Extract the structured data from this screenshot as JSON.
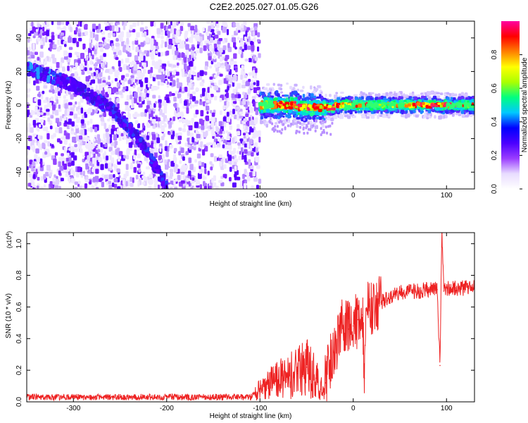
{
  "title": "C2E2.2025.027.01.05.G26",
  "chart_data": [
    {
      "type": "heatmap",
      "xlabel": "Height of straight line (km)",
      "ylabel": "Frequency (Hz)",
      "xlim": [
        -350,
        130
      ],
      "ylim": [
        -50,
        50
      ],
      "xticks": [
        -300,
        -200,
        -100,
        0,
        100
      ],
      "yticks": [
        -40,
        -20,
        0,
        20,
        40
      ],
      "colorbar": {
        "label": "Normalized spectral amplitude",
        "range": [
          0,
          1
        ],
        "ticks": [
          "0.0",
          "0.2",
          "0.4",
          "0.6",
          "0.8"
        ],
        "colormap": [
          "#ffffff",
          "#e8dcff",
          "#9a3dff",
          "#4b00ff",
          "#0000ff",
          "#00c8ff",
          "#00ff80",
          "#aaff00",
          "#ffff00",
          "#ff8000",
          "#ff0000",
          "#ff00a0"
        ]
      },
      "features": {
        "noise_region_x": [
          -350,
          -100
        ],
        "descending_track": [
          [
            -350,
            22
          ],
          [
            -300,
            12
          ],
          [
            -260,
            -2
          ],
          [
            -230,
            -20
          ],
          [
            -200,
            -48
          ]
        ],
        "signal_band_x": [
          -100,
          130
        ],
        "signal_band_center_hz": 0
      }
    },
    {
      "type": "line",
      "xlabel": "Height of straight line (km)",
      "ylabel": "SNR (10 * v/v)",
      "y_exponent_label": "(x10",
      "y_exponent": "4",
      "xlim": [
        -350,
        130
      ],
      "ylim": [
        0,
        1.07
      ],
      "xticks": [
        -300,
        -200,
        -100,
        0,
        100
      ],
      "yticks": [
        "0.0",
        "0.2",
        "0.4",
        "0.6",
        "0.8",
        "1.0"
      ],
      "series": [
        {
          "name": "SNR",
          "color": "#ee2222",
          "x": [
            -350,
            -300,
            -250,
            -200,
            -150,
            -110,
            -100,
            -90,
            -80,
            -70,
            -60,
            -50,
            -40,
            -35,
            -30,
            -25,
            -20,
            -15,
            -12,
            -10,
            -8,
            -5,
            0,
            5,
            10,
            12,
            14,
            20,
            30,
            40,
            50,
            60,
            70,
            80,
            90,
            93,
            95,
            97,
            100,
            110,
            120,
            130
          ],
          "values": [
            0.03,
            0.03,
            0.03,
            0.03,
            0.03,
            0.03,
            0.08,
            0.12,
            0.14,
            0.16,
            0.18,
            0.22,
            0.15,
            0.08,
            0.12,
            0.25,
            0.32,
            0.42,
            0.58,
            0.4,
            0.5,
            0.46,
            0.48,
            0.52,
            0.55,
            0.15,
            0.58,
            0.6,
            0.63,
            0.67,
            0.69,
            0.7,
            0.7,
            0.71,
            0.71,
            0.23,
            1.07,
            0.7,
            0.72,
            0.72,
            0.72,
            0.72
          ]
        }
      ]
    }
  ]
}
